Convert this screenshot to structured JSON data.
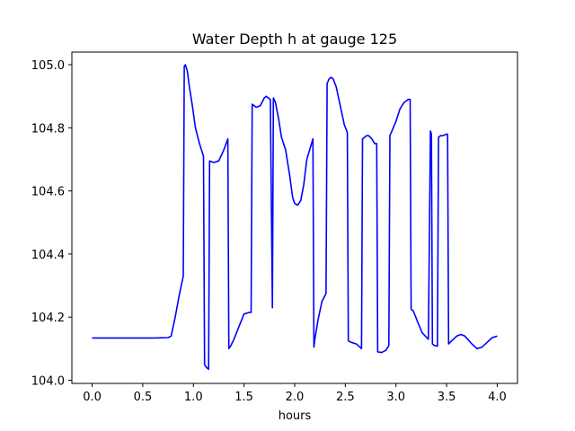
{
  "chart_data": {
    "type": "line",
    "title": "Water Depth h at gauge 125",
    "xlabel": "hours",
    "ylabel": "",
    "xlim": [
      -0.2,
      4.2
    ],
    "ylim": [
      103.99,
      105.04
    ],
    "xticks": [
      {
        "value": 0.0,
        "label": "0.0"
      },
      {
        "value": 0.5,
        "label": "0.5"
      },
      {
        "value": 1.0,
        "label": "1.0"
      },
      {
        "value": 1.5,
        "label": "1.5"
      },
      {
        "value": 2.0,
        "label": "2.0"
      },
      {
        "value": 2.5,
        "label": "2.5"
      },
      {
        "value": 3.0,
        "label": "3.0"
      },
      {
        "value": 3.5,
        "label": "3.5"
      },
      {
        "value": 4.0,
        "label": "4.0"
      }
    ],
    "yticks": [
      {
        "value": 104.0,
        "label": "104.0"
      },
      {
        "value": 104.2,
        "label": "104.2"
      },
      {
        "value": 104.4,
        "label": "104.4"
      },
      {
        "value": 104.6,
        "label": "104.6"
      },
      {
        "value": 104.8,
        "label": "104.8"
      },
      {
        "value": 105.0,
        "label": "105.0"
      }
    ],
    "grid": false,
    "legend": "none",
    "series": [
      {
        "color": "#0000ff",
        "x": [
          0.0,
          0.3,
          0.6,
          0.75,
          0.78,
          0.82,
          0.86,
          0.9,
          0.91,
          0.92,
          0.94,
          0.96,
          0.99,
          1.02,
          1.06,
          1.1,
          1.11,
          1.13,
          1.15,
          1.16,
          1.2,
          1.25,
          1.3,
          1.34,
          1.35,
          1.37,
          1.4,
          1.45,
          1.5,
          1.55,
          1.57,
          1.58,
          1.62,
          1.66,
          1.7,
          1.72,
          1.76,
          1.78,
          1.79,
          1.81,
          1.84,
          1.87,
          1.91,
          1.95,
          1.98,
          2.0,
          2.03,
          2.06,
          2.09,
          2.12,
          2.18,
          2.19,
          2.2,
          2.23,
          2.27,
          2.31,
          2.32,
          2.34,
          2.36,
          2.38,
          2.41,
          2.45,
          2.49,
          2.52,
          2.53,
          2.56,
          2.61,
          2.66,
          2.67,
          2.69,
          2.71,
          2.73,
          2.76,
          2.79,
          2.81,
          2.82,
          2.86,
          2.9,
          2.93,
          2.94,
          2.96,
          3.0,
          3.04,
          3.08,
          3.12,
          3.14,
          3.15,
          3.17,
          3.19,
          3.22,
          3.26,
          3.32,
          3.34,
          3.35,
          3.36,
          3.38,
          3.41,
          3.42,
          3.44,
          3.46,
          3.5,
          3.51,
          3.52,
          3.55,
          3.6,
          3.64,
          3.68,
          3.75,
          3.8,
          3.85,
          3.9,
          3.95,
          4.0
        ],
        "values": [
          104.134,
          104.134,
          104.134,
          104.135,
          104.14,
          104.2,
          104.27,
          104.33,
          104.995,
          105.0,
          104.98,
          104.93,
          104.87,
          104.8,
          104.75,
          104.71,
          104.05,
          104.04,
          104.035,
          104.695,
          104.69,
          104.695,
          104.73,
          104.765,
          104.1,
          104.11,
          104.13,
          104.17,
          104.21,
          104.215,
          104.215,
          104.875,
          104.865,
          104.87,
          104.895,
          104.9,
          104.89,
          104.23,
          104.895,
          104.88,
          104.83,
          104.77,
          104.73,
          104.65,
          104.58,
          104.56,
          104.555,
          104.57,
          104.62,
          104.7,
          104.765,
          104.105,
          104.13,
          104.19,
          104.25,
          104.275,
          104.94,
          104.955,
          104.96,
          104.955,
          104.93,
          104.87,
          104.81,
          104.785,
          104.125,
          104.12,
          104.115,
          104.1,
          104.765,
          104.77,
          104.775,
          104.775,
          104.765,
          104.75,
          104.75,
          104.09,
          104.088,
          104.095,
          104.11,
          104.775,
          104.79,
          104.82,
          104.86,
          104.88,
          104.89,
          104.89,
          104.225,
          104.22,
          104.205,
          104.18,
          104.15,
          104.13,
          104.79,
          104.78,
          104.115,
          104.11,
          104.108,
          104.77,
          104.775,
          104.775,
          104.78,
          104.78,
          104.115,
          104.125,
          104.14,
          104.145,
          104.14,
          104.115,
          104.1,
          104.105,
          104.12,
          104.135,
          104.14
        ]
      }
    ]
  }
}
